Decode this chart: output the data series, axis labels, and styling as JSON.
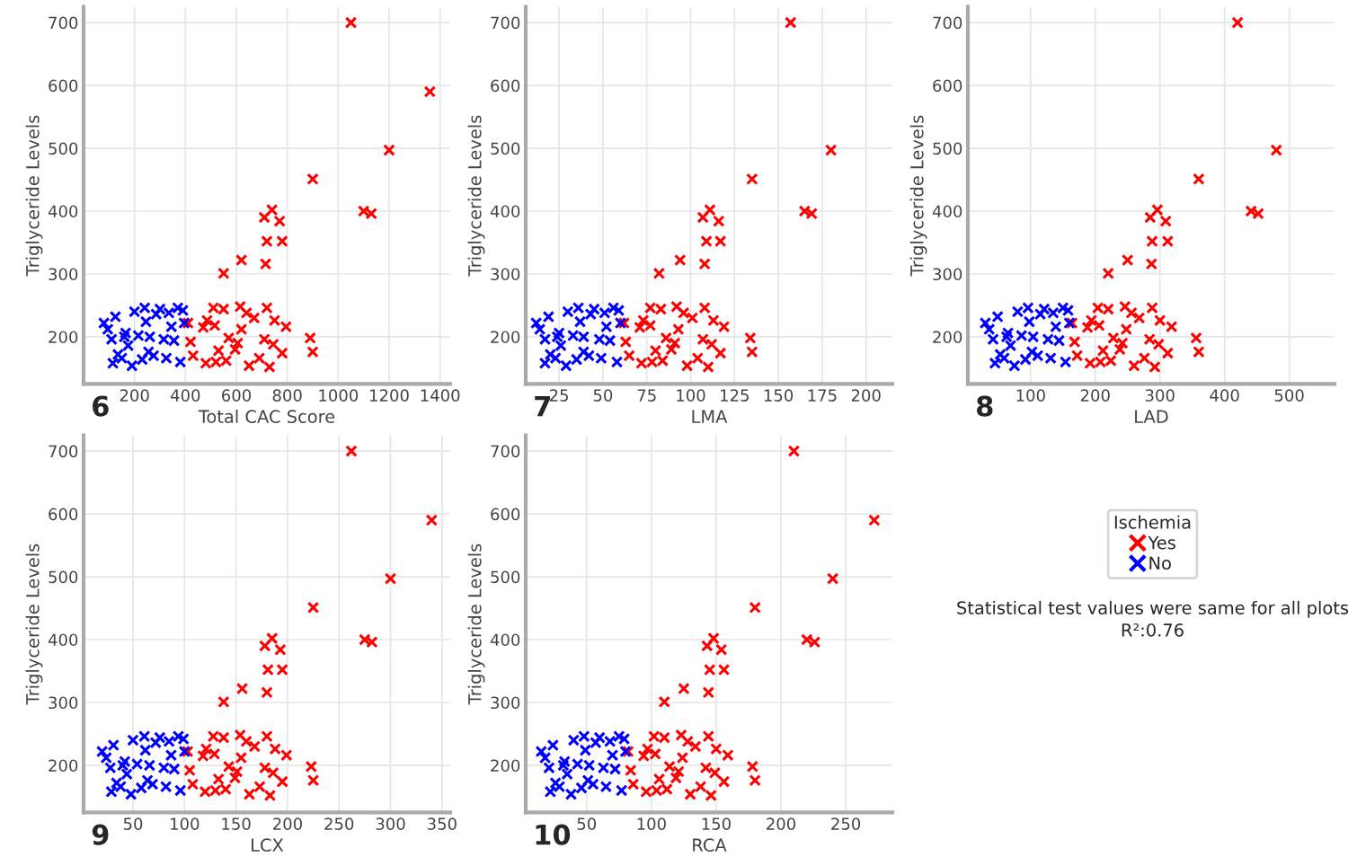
{
  "chart_data": [
    {
      "type": "scatter",
      "title": "6",
      "xlabel": "Total CAC Score",
      "ylabel": "Triglyceride Levels",
      "xlim": [
        0,
        1440
      ],
      "ylim": [
        125,
        725
      ],
      "xticks": [
        200,
        400,
        600,
        800,
        1000,
        1200,
        1400
      ],
      "yticks": [
        200,
        300,
        400,
        500,
        600,
        700
      ],
      "grid": true,
      "marker": "cross",
      "series": [
        {
          "color": "#ff0000",
          "x": [
            410,
            420,
            430,
            470,
            480,
            485,
            510,
            515,
            520,
            530,
            550,
            560,
            570,
            595,
            605,
            615,
            620,
            640,
            650,
            670,
            690,
            710,
            720,
            730,
            745,
            750,
            780,
            795,
            890,
            900,
            1050,
            1360,
            1200,
            900,
            1100,
            1130,
            740,
            710,
            770,
            720,
            780,
            620,
            715,
            550
          ],
          "values": [
            222,
            192,
            170,
            215,
            158,
            226,
            246,
            218,
            160,
            178,
            244,
            162,
            198,
            180,
            190,
            248,
            212,
            238,
            154,
            230,
            166,
            196,
            246,
            152,
            188,
            226,
            174,
            216,
            198,
            176,
            700,
            590,
            497,
            451,
            400,
            396,
            402,
            390,
            384,
            352,
            352,
            322,
            316,
            301
          ]
        },
        {
          "color": "#0000ff",
          "x": [
            80,
            95,
            110,
            115,
            125,
            135,
            150,
            160,
            165,
            175,
            190,
            200,
            215,
            230,
            240,
            245,
            255,
            260,
            275,
            285,
            300,
            315,
            325,
            335,
            345,
            355,
            370,
            380,
            390,
            395
          ],
          "values": [
            222,
            212,
            196,
            158,
            232,
            172,
            166,
            200,
            206,
            186,
            154,
            240,
            202,
            164,
            246,
            224,
            176,
            200,
            170,
            236,
            244,
            196,
            166,
            238,
            216,
            194,
            246,
            160,
            242,
            222
          ]
        }
      ]
    },
    {
      "type": "scatter",
      "title": "7",
      "xlabel": "LMA",
      "ylabel": "Triglyceride Levels",
      "xlim": [
        6,
        215
      ],
      "ylim": [
        125,
        725
      ],
      "xticks": [
        25,
        50,
        75,
        100,
        125,
        150,
        175,
        200
      ],
      "yticks": [
        200,
        300,
        400,
        500,
        600,
        700
      ],
      "grid": true,
      "marker": "cross",
      "series": [
        {
          "color": "#ff0000",
          "x": [
            62,
            63,
            65,
            71,
            72,
            73,
            77,
            77,
            78,
            80,
            83,
            84,
            86,
            89,
            91,
            92,
            93,
            96,
            98,
            101,
            104,
            107,
            108,
            110,
            112,
            113,
            117,
            119,
            134,
            135,
            157,
            180,
            135,
            165,
            169,
            111,
            107,
            116,
            109,
            117,
            94,
            108,
            82
          ],
          "values": [
            222,
            192,
            170,
            215,
            158,
            226,
            246,
            218,
            160,
            178,
            244,
            162,
            198,
            180,
            190,
            248,
            212,
            238,
            154,
            230,
            166,
            196,
            246,
            152,
            188,
            226,
            174,
            216,
            198,
            176,
            700,
            497,
            451,
            400,
            396,
            402,
            390,
            384,
            352,
            352,
            322,
            316,
            301
          ]
        },
        {
          "color": "#0000ff",
          "x": [
            12,
            14,
            17,
            17,
            19,
            20,
            23,
            24,
            25,
            26,
            29,
            30,
            33,
            35,
            36,
            37,
            39,
            39,
            42,
            43,
            45,
            48,
            49,
            51,
            52,
            54,
            56,
            58,
            59,
            60
          ],
          "values": [
            222,
            212,
            196,
            158,
            232,
            172,
            166,
            200,
            206,
            186,
            154,
            240,
            202,
            164,
            246,
            224,
            176,
            200,
            170,
            236,
            244,
            196,
            166,
            238,
            216,
            194,
            246,
            160,
            242,
            222
          ]
        }
      ]
    },
    {
      "type": "scatter",
      "title": "8",
      "xlabel": "LAD",
      "ylabel": "Triglyceride Levels",
      "xlim": [
        3,
        570
      ],
      "ylim": [
        125,
        725
      ],
      "xticks": [
        100,
        200,
        300,
        400,
        500
      ],
      "yticks": [
        200,
        300,
        400,
        500,
        600,
        700
      ],
      "grid": true,
      "marker": "cross",
      "series": [
        {
          "color": "#ff0000",
          "x": [
            164,
            168,
            172,
            188,
            192,
            194,
            204,
            206,
            208,
            212,
            220,
            224,
            228,
            238,
            242,
            246,
            248,
            256,
            260,
            268,
            276,
            284,
            288,
            292,
            298,
            300,
            312,
            318,
            356,
            360,
            420,
            480,
            360,
            441,
            452,
            296,
            285,
            309,
            288,
            312,
            250,
            287,
            220
          ],
          "values": [
            222,
            192,
            170,
            215,
            158,
            226,
            246,
            218,
            160,
            178,
            244,
            162,
            198,
            180,
            190,
            248,
            212,
            238,
            154,
            230,
            166,
            196,
            246,
            152,
            188,
            226,
            174,
            216,
            198,
            176,
            700,
            497,
            451,
            400,
            396,
            402,
            390,
            384,
            352,
            352,
            322,
            316,
            301
          ]
        },
        {
          "color": "#0000ff",
          "x": [
            30,
            36,
            42,
            45,
            49,
            53,
            59,
            63,
            65,
            69,
            75,
            80,
            86,
            92,
            96,
            98,
            102,
            104,
            111,
            115,
            121,
            127,
            131,
            135,
            139,
            144,
            150,
            154,
            158,
            160
          ],
          "values": [
            222,
            212,
            196,
            158,
            232,
            172,
            166,
            200,
            206,
            186,
            154,
            240,
            202,
            164,
            246,
            224,
            176,
            200,
            170,
            236,
            244,
            196,
            166,
            238,
            216,
            194,
            246,
            160,
            242,
            222
          ]
        }
      ]
    },
    {
      "type": "scatter",
      "title": "9",
      "xlabel": "LCX",
      "ylabel": "Triglyceride Levels",
      "xlim": [
        2,
        358
      ],
      "ylim": [
        125,
        725
      ],
      "xticks": [
        50,
        100,
        150,
        200,
        250,
        300,
        350
      ],
      "yticks": [
        200,
        300,
        400,
        500,
        600,
        700
      ],
      "grid": true,
      "marker": "cross",
      "series": [
        {
          "color": "#ff0000",
          "x": [
            103,
            105,
            108,
            118,
            120,
            121,
            128,
            129,
            130,
            133,
            138,
            140,
            143,
            149,
            151,
            154,
            155,
            160,
            163,
            168,
            173,
            178,
            180,
            183,
            186,
            188,
            195,
            199,
            223,
            225,
            262,
            340,
            300,
            225,
            275,
            282,
            185,
            178,
            193,
            181,
            195,
            156,
            180,
            138
          ],
          "values": [
            222,
            192,
            170,
            215,
            158,
            226,
            246,
            218,
            160,
            178,
            244,
            162,
            198,
            180,
            190,
            248,
            212,
            238,
            154,
            230,
            166,
            196,
            246,
            152,
            188,
            226,
            174,
            216,
            198,
            176,
            700,
            590,
            497,
            451,
            400,
            396,
            402,
            390,
            384,
            352,
            352,
            322,
            316,
            301
          ]
        },
        {
          "color": "#0000ff",
          "x": [
            20,
            24,
            28,
            29,
            31,
            34,
            38,
            40,
            42,
            44,
            48,
            50,
            54,
            58,
            61,
            62,
            64,
            66,
            69,
            72,
            76,
            80,
            82,
            85,
            87,
            90,
            94,
            96,
            99,
            100
          ],
          "values": [
            222,
            212,
            196,
            158,
            232,
            172,
            166,
            200,
            206,
            186,
            154,
            240,
            202,
            164,
            246,
            224,
            176,
            200,
            170,
            236,
            244,
            196,
            166,
            238,
            216,
            194,
            246,
            160,
            242,
            222
          ]
        }
      ]
    },
    {
      "type": "scatter",
      "title": "10",
      "xlabel": "RCA",
      "ylabel": "Triglyceride Levels",
      "xlim": [
        3,
        286
      ],
      "ylim": [
        125,
        725
      ],
      "xticks": [
        50,
        100,
        150,
        200,
        250
      ],
      "yticks": [
        200,
        300,
        400,
        500,
        600,
        700
      ],
      "grid": true,
      "marker": "cross",
      "legend": "right",
      "legend_title": "Ischemia",
      "annotations": [
        "Statistical test values were same for all plots",
        "R²:0.76"
      ],
      "series": [
        {
          "name": "Yes",
          "color": "#ff0000",
          "x": [
            82,
            84,
            86,
            94,
            96,
            97,
            102,
            103,
            104,
            106,
            110,
            112,
            114,
            119,
            121,
            123,
            124,
            128,
            130,
            134,
            138,
            142,
            144,
            146,
            149,
            150,
            156,
            159,
            178,
            180,
            210,
            272,
            240,
            180,
            220,
            226,
            148,
            143,
            154,
            145,
            156,
            125,
            144,
            110
          ],
          "values": [
            222,
            192,
            170,
            215,
            158,
            226,
            246,
            218,
            160,
            178,
            244,
            162,
            198,
            180,
            190,
            248,
            212,
            238,
            154,
            230,
            166,
            196,
            246,
            152,
            188,
            226,
            174,
            216,
            198,
            176,
            700,
            590,
            497,
            451,
            400,
            396,
            402,
            390,
            384,
            352,
            352,
            322,
            316,
            301
          ]
        },
        {
          "name": "No",
          "color": "#0000ff",
          "x": [
            15,
            18,
            21,
            22,
            24,
            26,
            29,
            32,
            33,
            35,
            38,
            40,
            43,
            46,
            48,
            49,
            51,
            52,
            55,
            57,
            60,
            63,
            65,
            68,
            70,
            72,
            75,
            77,
            79,
            80
          ],
          "values": [
            222,
            212,
            196,
            158,
            232,
            172,
            166,
            200,
            206,
            186,
            154,
            240,
            202,
            164,
            246,
            224,
            176,
            200,
            170,
            236,
            244,
            196,
            166,
            238,
            216,
            194,
            246,
            160,
            242,
            222
          ]
        }
      ]
    }
  ]
}
